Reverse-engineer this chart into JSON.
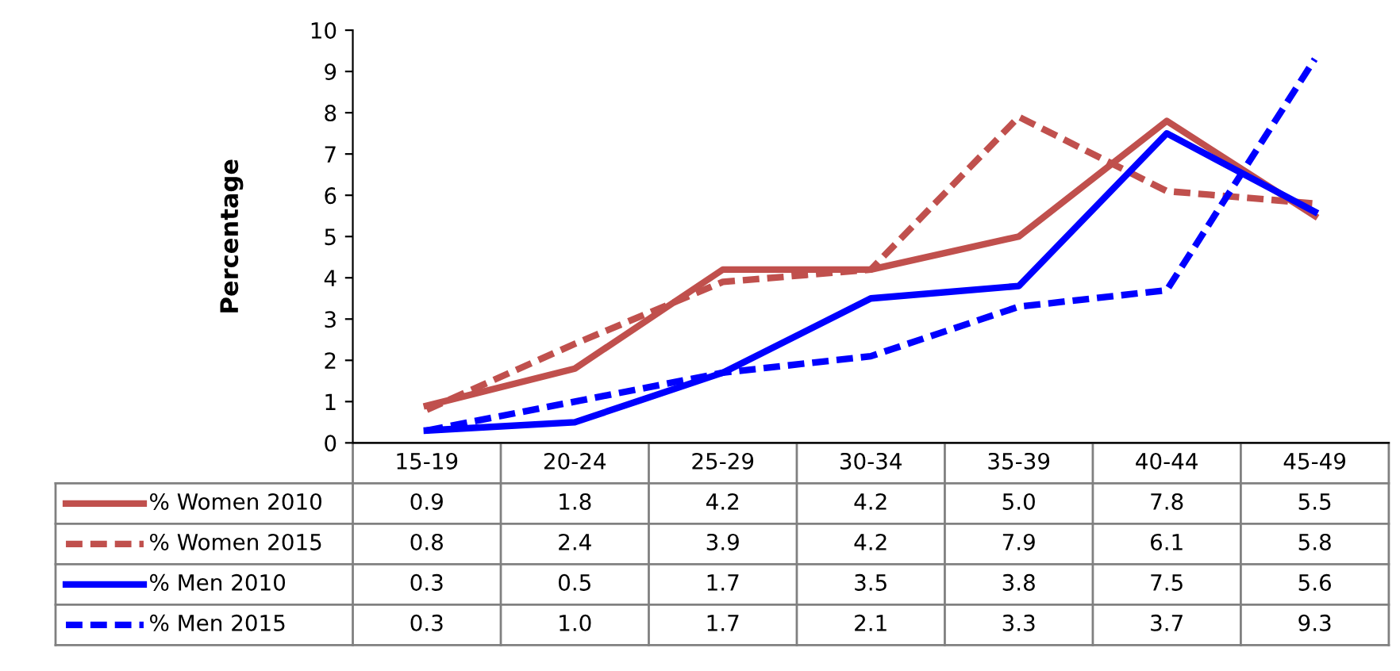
{
  "chart_data": {
    "type": "line",
    "ylabel": "Percentage",
    "categories": [
      "15-19",
      "20-24",
      "25-29",
      "30-34",
      "35-39",
      "40-44",
      "45-49"
    ],
    "ylim": [
      0,
      10
    ],
    "yticks": [
      0,
      1,
      2,
      3,
      4,
      5,
      6,
      7,
      8,
      9,
      10
    ],
    "grid": false,
    "marker": "none",
    "legend": "bottom left",
    "series": [
      {
        "name": "% Women 2010",
        "color": "#c0504d",
        "line_style": "solid",
        "values": [
          0.9,
          1.8,
          4.2,
          4.2,
          5.0,
          7.8,
          5.5
        ],
        "value_labels": [
          "0.9",
          "1.8",
          "4.2",
          "4.2",
          "5.0",
          "7.8",
          "5.5"
        ]
      },
      {
        "name": "% Women 2015",
        "color": "#c0504d",
        "line_style": "dashed",
        "values": [
          0.8,
          2.4,
          3.9,
          4.2,
          7.9,
          6.1,
          5.8
        ],
        "value_labels": [
          "0.8",
          "2.4",
          "3.9",
          "4.2",
          "7.9",
          "6.1",
          "5.8"
        ]
      },
      {
        "name": "% Men 2010",
        "color": "#0000ff",
        "line_style": "solid",
        "values": [
          0.3,
          0.5,
          1.7,
          3.5,
          3.8,
          7.5,
          5.6
        ],
        "value_labels": [
          "0.3",
          "0.5",
          "1.7",
          "3.5",
          "3.8",
          "7.5",
          "5.6"
        ]
      },
      {
        "name": "% Men 2015",
        "color": "#0000ff",
        "line_style": "dashed",
        "values": [
          0.3,
          1.0,
          1.7,
          2.1,
          3.3,
          3.7,
          9.3
        ],
        "value_labels": [
          "0.3",
          "1.0",
          "1.7",
          "2.1",
          "3.3",
          "3.7",
          "9.3"
        ]
      }
    ]
  }
}
